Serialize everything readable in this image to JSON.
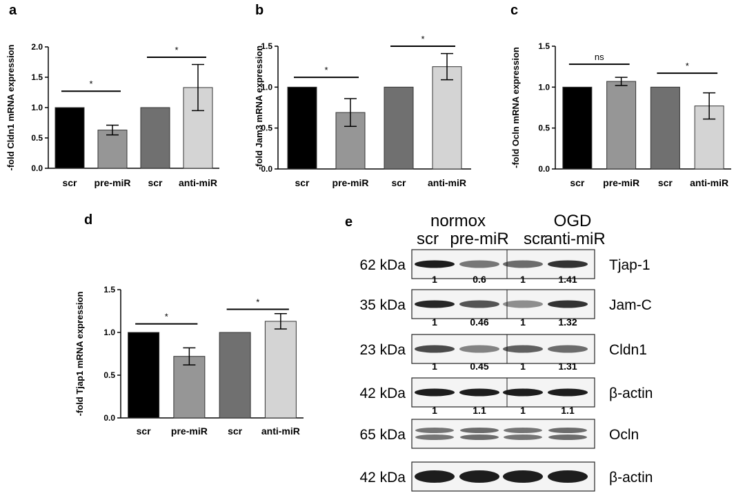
{
  "colors": {
    "bar_fills": [
      "#000000",
      "#969696",
      "#707070",
      "#d4d4d4"
    ],
    "axis": "#000000",
    "band": "#111111",
    "blot_bg": "#f4f4f4"
  },
  "chart_data": [
    {
      "panel": "a",
      "type": "bar",
      "categories": [
        "scr",
        "pre-miR",
        "scr",
        "anti-miR"
      ],
      "values": [
        1.0,
        0.63,
        1.0,
        1.33
      ],
      "errors": [
        0,
        0.08,
        0,
        0.38
      ],
      "ylabel": "-fold Cldn1  mRNA expression",
      "ylim": [
        0,
        2.0
      ],
      "yticks": [
        0.0,
        0.5,
        1.0,
        1.5,
        2.0
      ],
      "ytick_labels": [
        "0.0",
        "0.5",
        "1.0",
        "1.5",
        "2.0"
      ],
      "significance": [
        {
          "pair": [
            0,
            1
          ],
          "label": "*",
          "y": 1.27
        },
        {
          "pair": [
            2,
            3
          ],
          "label": "*",
          "y": 1.83
        }
      ]
    },
    {
      "panel": "b",
      "type": "bar",
      "categories": [
        "scr",
        "pre-miR",
        "scr",
        "anti-miR"
      ],
      "values": [
        1.0,
        0.69,
        1.0,
        1.25
      ],
      "errors": [
        0,
        0.17,
        0,
        0.16
      ],
      "ylabel": "-fold Jam3 mRNA expression",
      "ylim": [
        0,
        1.5
      ],
      "yticks": [
        0.0,
        0.5,
        1.0,
        1.5
      ],
      "ytick_labels": [
        "0.0",
        "0.5",
        "1.0",
        "1.5"
      ],
      "significance": [
        {
          "pair": [
            0,
            1
          ],
          "label": "*",
          "y": 1.12
        },
        {
          "pair": [
            2,
            3
          ],
          "label": "*",
          "y": 1.5
        }
      ]
    },
    {
      "panel": "c",
      "type": "bar",
      "categories": [
        "scr",
        "pre-miR",
        "scr",
        "anti-miR"
      ],
      "values": [
        1.0,
        1.07,
        1.0,
        0.77
      ],
      "errors": [
        0,
        0.05,
        0,
        0.16
      ],
      "ylabel": "-fold Ocln mRNA expression",
      "ylim": [
        0,
        1.5
      ],
      "yticks": [
        0.0,
        0.5,
        1.0,
        1.5
      ],
      "ytick_labels": [
        "0.0",
        "0.5",
        "1.0",
        "1.5"
      ],
      "significance": [
        {
          "pair": [
            0,
            1
          ],
          "label": "ns",
          "y": 1.28
        },
        {
          "pair": [
            2,
            3
          ],
          "label": "*",
          "y": 1.17
        }
      ]
    },
    {
      "panel": "d",
      "type": "bar",
      "categories": [
        "scr",
        "pre-miR",
        "scr",
        "anti-miR"
      ],
      "values": [
        1.0,
        0.72,
        1.0,
        1.13
      ],
      "errors": [
        0,
        0.1,
        0,
        0.09
      ],
      "ylabel": "-fold Tjap1 mRNA expression",
      "ylim": [
        0,
        1.5
      ],
      "yticks": [
        0.0,
        0.5,
        1.0,
        1.5
      ],
      "ytick_labels": [
        "0.0",
        "0.5",
        "1.0",
        "1.5"
      ],
      "significance": [
        {
          "pair": [
            0,
            1
          ],
          "label": "*",
          "y": 1.1
        },
        {
          "pair": [
            2,
            3
          ],
          "label": "*",
          "y": 1.27
        }
      ]
    }
  ],
  "blot": {
    "panel": "e",
    "group_labels": [
      "normox",
      "OGD"
    ],
    "lane_labels": [
      "scr",
      "pre-miR",
      "scr",
      "anti-miR"
    ],
    "rows": [
      {
        "kda": "62 kDa",
        "protein": "Tjap-1",
        "quant": [
          "1",
          "0.6",
          "1",
          "1.41"
        ],
        "intensity": [
          0.95,
          0.55,
          0.6,
          0.85
        ],
        "split": true
      },
      {
        "kda": "35 kDa",
        "protein": "Jam-C",
        "quant": [
          "1",
          "0.46",
          "1",
          "1.32"
        ],
        "intensity": [
          0.9,
          0.7,
          0.45,
          0.85
        ],
        "split": true
      },
      {
        "kda": "23 kDa",
        "protein": "Cldn1",
        "quant": [
          "1",
          "0.45",
          "1",
          "1.31"
        ],
        "intensity": [
          0.75,
          0.5,
          0.65,
          0.6
        ],
        "split": true
      },
      {
        "kda": "42 kDa",
        "protein": "β-actin",
        "quant": [
          "1",
          "1.1",
          "1",
          "1.1"
        ],
        "intensity": [
          0.95,
          0.95,
          0.95,
          0.95
        ],
        "split": true
      },
      {
        "kda": "65 kDa",
        "protein": "Ocln",
        "quant": [],
        "intensity": [
          0.7,
          0.75,
          0.7,
          0.75
        ],
        "split": false
      },
      {
        "kda": "42 kDa",
        "protein": "β-actin",
        "quant": [],
        "intensity": [
          0.95,
          0.95,
          0.95,
          0.95
        ],
        "split": false
      }
    ]
  }
}
